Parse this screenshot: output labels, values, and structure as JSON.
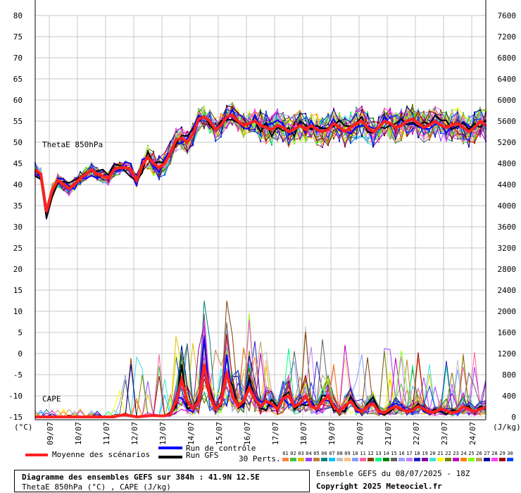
{
  "chart_data": {
    "type": "line",
    "left_axis_ticks": [
      "80",
      "75",
      "70",
      "65",
      "60",
      "55",
      "50",
      "45",
      "40",
      "35",
      "30",
      "25",
      "20",
      "15",
      "10",
      "5",
      "0",
      "-5",
      "-10",
      "-15"
    ],
    "left_axis_unit": "(°C)",
    "right_axis_ticks": [
      "7600",
      "7200",
      "6800",
      "6400",
      "6000",
      "5600",
      "5200",
      "4800",
      "4400",
      "4000",
      "3600",
      "3200",
      "2800",
      "2400",
      "2000",
      "1600",
      "1200",
      "800",
      "400",
      "0"
    ],
    "right_axis_unit": "(J/kg)",
    "x_tick_labels": [
      "09/07",
      "10/07",
      "11/07",
      "12/07",
      "13/07",
      "14/07",
      "15/07",
      "16/07",
      "17/07",
      "18/07",
      "19/07",
      "20/07",
      "21/07",
      "22/07",
      "23/07",
      "24/07"
    ],
    "ylim_left": [
      -15,
      80
    ],
    "ylim_right": [
      0,
      7600
    ],
    "grid": true,
    "panel_labels": [
      "ThetaE 850hPa",
      "CAPE"
    ],
    "series": [
      {
        "name": "Moyenne des scénarios",
        "color": "#ff2020",
        "thetae_values": [
          43.5,
          42.5,
          33.5,
          38.5,
          41,
          40,
          39,
          40,
          41.5,
          42.5,
          43.5,
          42.5,
          42,
          41.5,
          43.5,
          44,
          44,
          43.5,
          41,
          44.5,
          46.5,
          45,
          44,
          45,
          47.5,
          50.5,
          51,
          50,
          52,
          55.5,
          56,
          55,
          53,
          54,
          56,
          56.5,
          55,
          54,
          54.5,
          55,
          54,
          53.5,
          53,
          54,
          53.5,
          52.5,
          53,
          54,
          53,
          54,
          53,
          52.5,
          53,
          54.5,
          53.5,
          52.5,
          53.5,
          54.5,
          55,
          53.5,
          52.5,
          53.5,
          55,
          54.5,
          53.5,
          54,
          55,
          55.5,
          54.5,
          53.5,
          54,
          55,
          54,
          53.5,
          54,
          54.5,
          53.5,
          52.5,
          53.5,
          55,
          54
        ],
        "cape_values": [
          0,
          0,
          0,
          0,
          0,
          0,
          0,
          0,
          0,
          0,
          0,
          0,
          0,
          0,
          0,
          30,
          40,
          20,
          0,
          10,
          20,
          30,
          20,
          20,
          50,
          300,
          700,
          300,
          150,
          300,
          1000,
          400,
          150,
          250,
          850,
          400,
          200,
          300,
          550,
          350,
          200,
          300,
          250,
          150,
          350,
          400,
          200,
          250,
          400,
          200,
          150,
          300,
          400,
          200,
          100,
          200,
          300,
          150,
          100,
          200,
          250,
          100,
          80,
          150,
          200,
          150,
          100,
          120,
          200,
          150,
          80,
          100,
          150,
          120,
          80,
          100,
          200,
          150,
          100,
          150,
          180
        ]
      }
    ]
  },
  "legend": {
    "mean_label": "Moyenne des scénarios",
    "control_label": "Run de contrôle",
    "gfs_label": "Run GFS",
    "perts_label": "30 Perts.",
    "mean_color": "#ff2020",
    "control_color": "#0000ff",
    "gfs_color": "#000000",
    "pert_numbers": [
      "01",
      "02",
      "03",
      "04",
      "05",
      "06",
      "07",
      "08",
      "09",
      "10",
      "11",
      "12",
      "13",
      "14",
      "15",
      "16",
      "17",
      "18",
      "19",
      "20",
      "21",
      "22",
      "23",
      "24",
      "25",
      "26",
      "27",
      "28",
      "29",
      "30"
    ],
    "pert_colors": [
      "#ff8040",
      "#40c040",
      "#e0c000",
      "#a040ff",
      "#c08040",
      "#008080",
      "#00c0ff",
      "#c0c0c0",
      "#ffc080",
      "#80a0ff",
      "#ff60a0",
      "#804000",
      "#00ff80",
      "#008000",
      "#606060",
      "#a0a0ff",
      "#c080ff",
      "#2020c0",
      "#8000a0",
      "#40e0e0",
      "#ffff00",
      "#808000",
      "#c000c0",
      "#ff8000",
      "#80ff00",
      "#c0a060",
      "#0000a0",
      "#ff40ff",
      "#a00000",
      "#0040ff"
    ]
  },
  "info": {
    "title_line": "Diagramme des ensembles GEFS sur 384h : 41.9N 12.5E",
    "subtitle_line": "ThetaE 850hPa (°C) , CAPE (J/kg)",
    "ensemble_line": "Ensemble GEFS du 08/07/2025 - 18Z",
    "copyright": "Copyright 2025 Meteociel.fr"
  }
}
